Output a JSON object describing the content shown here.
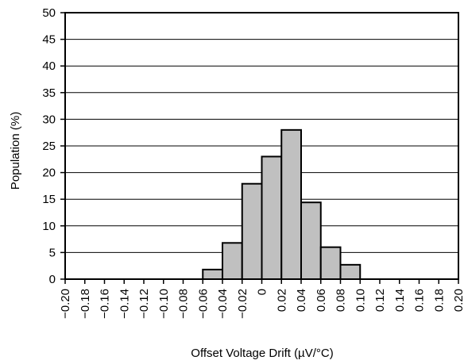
{
  "chart_data": {
    "type": "bar",
    "title": "",
    "xlabel": "Offset Voltage Drift (µV/°C)",
    "ylabel": "Population (%)",
    "xlim": [
      -0.2,
      0.2
    ],
    "ylim": [
      0,
      50
    ],
    "y_ticks": [
      0,
      5,
      10,
      15,
      20,
      25,
      30,
      35,
      40,
      45,
      50
    ],
    "x_tick_labels": [
      "−0.20",
      "−0.18",
      "−0.16",
      "−0.14",
      "−0.12",
      "−0.10",
      "−0.08",
      "−0.06",
      "−0.04",
      "−0.02",
      "0",
      "0.02",
      "0.04",
      "0.06",
      "0.08",
      "0.10",
      "0.12",
      "0.14",
      "0.16",
      "0.18",
      "0.20"
    ],
    "bins": [
      {
        "from": -0.06,
        "to": -0.04,
        "value": 1.8
      },
      {
        "from": -0.04,
        "to": -0.02,
        "value": 6.8
      },
      {
        "from": -0.02,
        "to": 0.0,
        "value": 17.9
      },
      {
        "from": 0.0,
        "to": 0.02,
        "value": 23.0
      },
      {
        "from": 0.02,
        "to": 0.04,
        "value": 28.0
      },
      {
        "from": 0.04,
        "to": 0.06,
        "value": 14.4
      },
      {
        "from": 0.06,
        "to": 0.08,
        "value": 6.0
      },
      {
        "from": 0.08,
        "to": 0.1,
        "value": 2.7
      }
    ],
    "grid": "horizontal",
    "colors": {
      "bar_fill": "#c0c0c0",
      "bar_stroke": "#000000",
      "grid": "#000000"
    }
  }
}
